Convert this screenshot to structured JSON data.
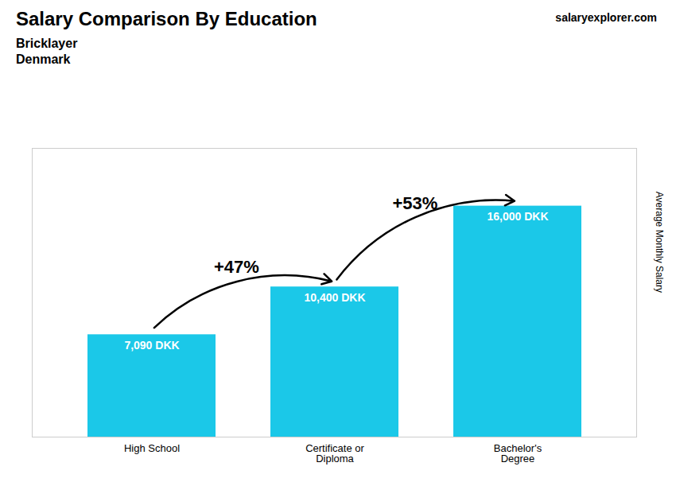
{
  "chart_data": {
    "type": "bar",
    "title": "Salary Comparison By Education",
    "subtitle": [
      "Bricklayer",
      "Denmark"
    ],
    "ylabel": "Average Monthly Salary",
    "categories": [
      "High School",
      "Certificate or\nDiploma",
      "Bachelor's\nDegree"
    ],
    "values": [
      7090,
      10400,
      16000
    ],
    "value_labels": [
      "7,090 DKK",
      "10,400 DKK",
      "16,000 DKK"
    ],
    "data_labels": true,
    "color": "#1BC8E8",
    "ylim": [
      0,
      20000
    ],
    "tick_labels": "x",
    "annotations": [
      {
        "text": "+47%",
        "from": "High School",
        "to": "Certificate or\nDiploma"
      },
      {
        "text": "+53%",
        "from": "Certificate or\nDiploma",
        "to": "Bachelor's\nDegree"
      }
    ],
    "watermark": [
      "salary",
      "explorer",
      ".com"
    ]
  }
}
